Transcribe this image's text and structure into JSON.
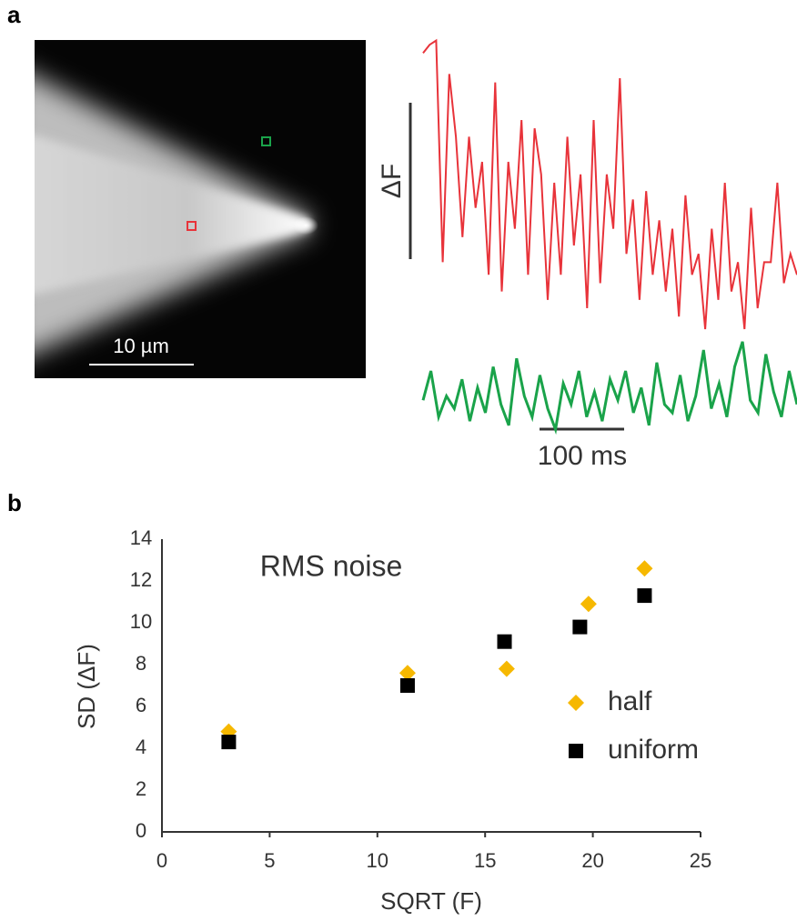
{
  "panel_labels": [
    "a",
    "b"
  ],
  "image": {
    "scale_label": "10 µm"
  },
  "chart_data": [
    {
      "type": "line",
      "y_label": "ΔF",
      "scale_label": "100 ms",
      "ylim": [
        0,
        100
      ],
      "series": [
        {
          "color": "#e8333a",
          "values": [
            96,
            98,
            99,
            46,
            91,
            76,
            52,
            76,
            59,
            70,
            43,
            89,
            39,
            70,
            54,
            80,
            43,
            78,
            67,
            37,
            65,
            43,
            76,
            50,
            67,
            35,
            80,
            41,
            67,
            54,
            90,
            48,
            61,
            37,
            63,
            43,
            56,
            39,
            54,
            33,
            62,
            43,
            48,
            30,
            54,
            37,
            65,
            39,
            46,
            30,
            59,
            35,
            46,
            46,
            65,
            41,
            48,
            43
          ]
        },
        {
          "color": "#1aa34a",
          "values": [
            13,
            20,
            9,
            14,
            11,
            18,
            8,
            16,
            10,
            21,
            12,
            7,
            23,
            14,
            9,
            19,
            11,
            6,
            17,
            12,
            20,
            9,
            15,
            8,
            18,
            13,
            20,
            10,
            16,
            7,
            22,
            12,
            10,
            19,
            8,
            14,
            25,
            11,
            17,
            9,
            21,
            27,
            13,
            10,
            24,
            15,
            9,
            20,
            12
          ]
        }
      ]
    },
    {
      "type": "scatter",
      "title": "RMS noise",
      "x_label": "SQRT (F)",
      "y_label": "SD (ΔF)",
      "xlim": [
        0,
        25
      ],
      "xticks": [
        0,
        5,
        10,
        15,
        20,
        25
      ],
      "ylim": [
        0,
        14
      ],
      "yticks": [
        0,
        2,
        4,
        6,
        8,
        10,
        12,
        14
      ],
      "series": [
        {
          "name": "half",
          "color": "#f6b800",
          "marker": "diamond",
          "x": [
            3.1,
            11.4,
            16.0,
            19.8,
            22.4
          ],
          "values": [
            4.8,
            7.6,
            7.8,
            10.9,
            12.6
          ]
        },
        {
          "name": "uniform",
          "color": "#000000",
          "marker": "square",
          "x": [
            3.1,
            11.4,
            15.9,
            19.4,
            22.4
          ],
          "values": [
            4.3,
            7.0,
            9.1,
            9.8,
            11.3
          ]
        }
      ]
    }
  ]
}
